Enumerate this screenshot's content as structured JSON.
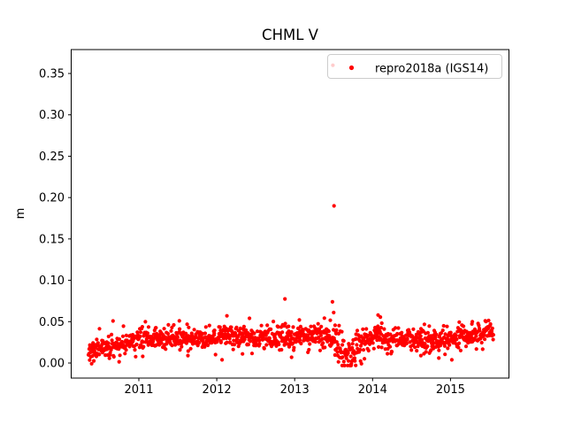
{
  "figure": {
    "title": "CHML V",
    "ylabel": "m",
    "xlabel": "",
    "legend_label": "repro2018a (IGS14)",
    "colors": {
      "marker": "#ff0000",
      "axis": "#000000",
      "background": "#ffffff",
      "legend_edge": "#cccccc",
      "legend_face": "#ffffff"
    }
  },
  "chart_data": {
    "type": "scatter",
    "title": "CHML V",
    "xlabel": "",
    "ylabel": "m",
    "xlim": [
      2010.13,
      2015.75
    ],
    "ylim": [
      -0.018,
      0.379
    ],
    "xticks": [
      2011,
      2012,
      2013,
      2014,
      2015
    ],
    "xtick_labels": [
      "2011",
      "2012",
      "2013",
      "2014",
      "2015"
    ],
    "yticks": [
      0.0,
      0.05,
      0.1,
      0.15,
      0.2,
      0.25,
      0.3,
      0.35
    ],
    "ytick_labels": [
      "0.00",
      "0.05",
      "0.10",
      "0.15",
      "0.20",
      "0.25",
      "0.30",
      "0.35"
    ],
    "grid": false,
    "legend": {
      "label": "repro2018a (IGS14)",
      "position": "upper right"
    },
    "series": [
      {
        "name": "repro2018a (IGS14)",
        "color": "#ff0000",
        "marker": "dot",
        "x_range": [
          2010.353,
          2015.552
        ],
        "n_points": 1250,
        "seed": 7,
        "noise_std": 0.0065,
        "wide_noise_fraction": 0.04,
        "wide_noise_factor": 1.9,
        "value_clip": [
          -0.003,
          0.064
        ],
        "dip_extra_noise": {
          "range": [
            2013.5,
            2013.95
          ],
          "factor": 1.7
        },
        "trend": [
          [
            2010.35,
            0.01
          ],
          [
            2010.45,
            0.018
          ],
          [
            2010.75,
            0.022
          ],
          [
            2011.0,
            0.028
          ],
          [
            2011.25,
            0.031
          ],
          [
            2011.6,
            0.029
          ],
          [
            2012.0,
            0.031
          ],
          [
            2012.3,
            0.034
          ],
          [
            2012.55,
            0.031
          ],
          [
            2012.8,
            0.032
          ],
          [
            2013.0,
            0.033
          ],
          [
            2013.3,
            0.035
          ],
          [
            2013.45,
            0.03
          ],
          [
            2013.6,
            0.014
          ],
          [
            2013.75,
            0.012
          ],
          [
            2013.9,
            0.026
          ],
          [
            2014.05,
            0.034
          ],
          [
            2014.25,
            0.03
          ],
          [
            2014.55,
            0.028
          ],
          [
            2014.8,
            0.027
          ],
          [
            2015.05,
            0.03
          ],
          [
            2015.3,
            0.033
          ],
          [
            2015.5,
            0.038
          ],
          [
            2015.55,
            0.038
          ]
        ],
        "outliers": [
          [
            2013.49,
            0.36
          ],
          [
            2013.505,
            0.19
          ],
          [
            2012.875,
            0.0775
          ],
          [
            2013.485,
            0.074
          ],
          [
            2013.5,
            0.061
          ],
          [
            2012.13,
            0.057
          ],
          [
            2014.07,
            0.058
          ],
          [
            2014.1,
            0.0555
          ],
          [
            2012.42,
            0.054
          ],
          [
            2011.52,
            0.051
          ],
          [
            2015.28,
            0.05
          ],
          [
            2013.06,
            0.052
          ],
          [
            2012.33,
            0.011
          ],
          [
            2012.96,
            0.007
          ],
          [
            2011.63,
            0.009
          ],
          [
            2014.73,
            0.012
          ],
          [
            2014.85,
            0.006
          ],
          [
            2014.62,
            0.009
          ],
          [
            2011.05,
            0.008
          ],
          [
            2013.17,
            0.013
          ]
        ]
      }
    ]
  }
}
